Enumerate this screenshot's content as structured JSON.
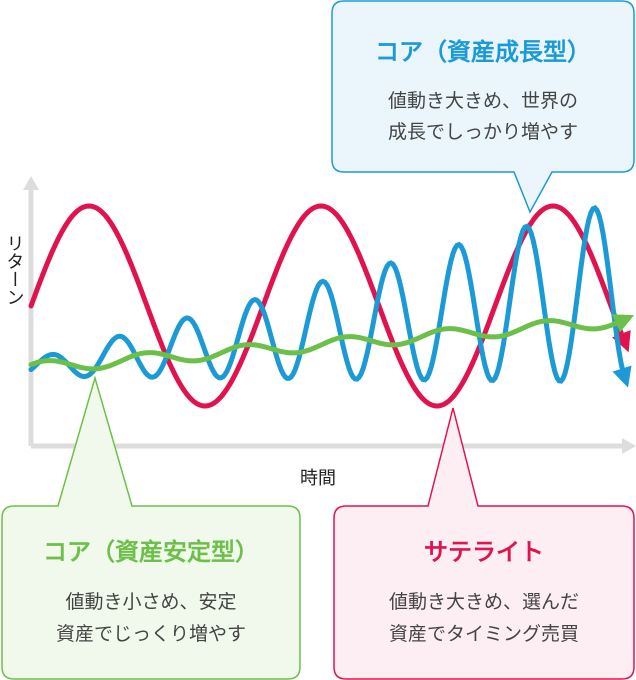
{
  "axes": {
    "y_label": "リターン",
    "x_label": "時間"
  },
  "callouts": {
    "core_growth": {
      "title": "コア（資産成長型）",
      "line1": "値動き大きめ、世界の",
      "line2": "成長でしっかり増やす",
      "color": "#1b9ad6",
      "fill": "#eaf6fc"
    },
    "core_stable": {
      "title": "コア（資産安定型）",
      "line1": "値動き小さめ、安定",
      "line2": "資産でじっくり増やす",
      "color": "#6cc04a",
      "fill": "#f1f9ec"
    },
    "satellite": {
      "title": "サテライト",
      "line1": "値動き大きめ、選んだ",
      "line2": "資産でタイミング売買",
      "color": "#e0134f",
      "fill": "#fdeef3"
    }
  },
  "colors": {
    "axis": "#dddddd",
    "text": "#222222",
    "body_text": "#444444"
  }
}
